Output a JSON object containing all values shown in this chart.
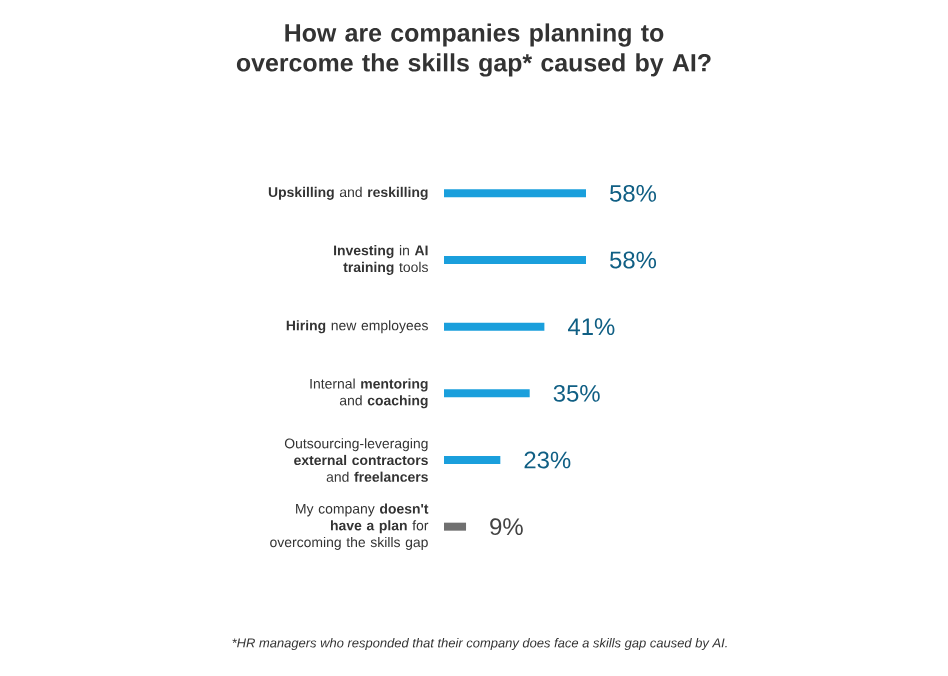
{
  "chart_data": {
    "type": "bar",
    "orientation": "horizontal",
    "title": "How are companies planning to overcome the skills gap* caused by AI?",
    "categories": [
      "**Upskilling** and **reskilling**",
      "**Investing** in **AI training** tools",
      "**Hiring** new employees",
      "Internal **mentoring** and **coaching**",
      "Outsourcing-leveraging **external contractors** and **freelancers**",
      "My company **doesn't have a plan** for overcoming the skills gap"
    ],
    "values": [
      58,
      58,
      41,
      35,
      23,
      9
    ],
    "value_labels": [
      "58%",
      "58%",
      "41%",
      "35%",
      "23%",
      "9%"
    ],
    "colors": [
      "#1a9fdc",
      "#1a9fdc",
      "#1a9fdc",
      "#1a9fdc",
      "#1a9fdc",
      "#707070"
    ],
    "annotations": [
      "*HR managers who responded that their company does face a skills gap caused by AI."
    ]
  }
}
